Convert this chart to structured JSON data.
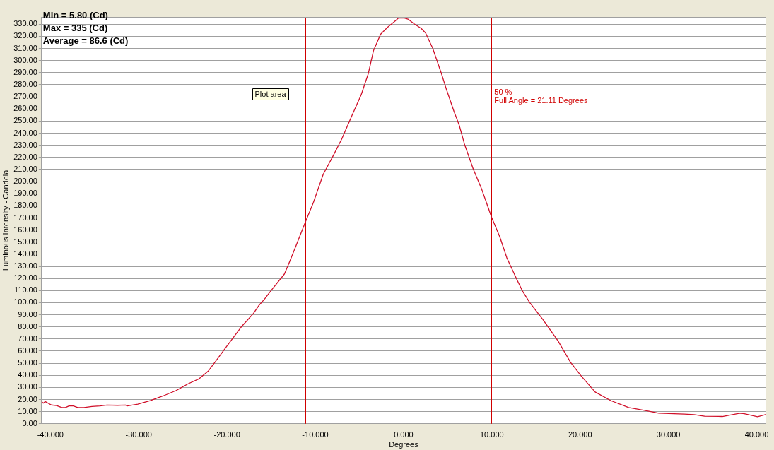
{
  "chart_data": {
    "type": "line",
    "xlabel": "Degrees",
    "ylabel": "Luminous Intensity - Candela",
    "series": [
      {
        "color": "#d0102a",
        "x": [
          -41.0,
          -40.8,
          -40.6,
          -39.9,
          -39.3,
          -38.7,
          -38.3,
          -37.9,
          -37.4,
          -36.9,
          -36.2,
          -35.3,
          -34.4,
          -33.6,
          -32.4,
          -31.5,
          -31.3,
          -30.1,
          -28.7,
          -27.3,
          -25.8,
          -24.4,
          -23.2,
          -22.1,
          -21.3,
          -20.1,
          -18.4,
          -17.0,
          -16.4,
          -15.8,
          -14.9,
          -13.5,
          -12.9,
          -12.2,
          -11.15,
          -10.2,
          -9.1,
          -8.0,
          -7.0,
          -5.8,
          -4.8,
          -4.0,
          -3.4,
          -2.6,
          -1.8,
          -1.0,
          -0.6,
          0.1,
          0.5,
          1.2,
          2.0,
          2.5,
          3.3,
          4.3,
          4.8,
          5.7,
          6.3,
          6.9,
          7.9,
          8.8,
          9.5,
          9.96,
          10.9,
          11.7,
          12.8,
          13.5,
          14.3,
          15.8,
          17.5,
          18.9,
          20.1,
          21.7,
          23.5,
          25.5,
          27.5,
          28.9,
          31.8,
          32.9,
          34.1,
          36.1,
          38.1,
          38.6,
          40.1,
          41.0
        ],
        "values": [
          18.3,
          17.0,
          18.3,
          15.5,
          15.0,
          13.4,
          13.4,
          14.7,
          14.7,
          13.4,
          13.4,
          14.3,
          14.7,
          15.4,
          15.2,
          15.4,
          14.7,
          16.2,
          19.1,
          22.8,
          27.3,
          33.0,
          37.0,
          43.7,
          51.4,
          63.3,
          79.8,
          91.1,
          97.6,
          102.5,
          111,
          123.6,
          134,
          146.7,
          166,
          183,
          206,
          221,
          235.2,
          255.3,
          271.7,
          289,
          308.3,
          321.7,
          327.5,
          332.3,
          335,
          335,
          334.2,
          330.3,
          326.5,
          322.7,
          310.2,
          289,
          277.4,
          258.2,
          246.7,
          231,
          210.2,
          194.7,
          180.3,
          170.7,
          154.4,
          137,
          119.7,
          109.2,
          100,
          85.9,
          68.4,
          50.9,
          39.6,
          26.2,
          19.0,
          13.4,
          10.7,
          8.7,
          8.0,
          7.5,
          6.2,
          6.0,
          8.7,
          8.3,
          5.8,
          7.6
        ]
      }
    ],
    "xlim": [
      -41,
      41
    ],
    "xticks": [
      {
        "value": -40,
        "label": "-40.000"
      },
      {
        "value": -30,
        "label": "-30.000"
      },
      {
        "value": -20,
        "label": "-20.000"
      },
      {
        "value": -10,
        "label": "-10.000"
      },
      {
        "value": 0,
        "label": "0.000"
      },
      {
        "value": 10,
        "label": "10.000"
      },
      {
        "value": 20,
        "label": "20.000"
      },
      {
        "value": 30,
        "label": "30.000"
      },
      {
        "value": 40,
        "label": "40.000"
      }
    ],
    "ylim": [
      0,
      336
    ],
    "yticks": [
      {
        "value": 0,
        "label": "0.00"
      },
      {
        "value": 10,
        "label": "10.00"
      },
      {
        "value": 20,
        "label": "20.00"
      },
      {
        "value": 30,
        "label": "30.00"
      },
      {
        "value": 40,
        "label": "40.00"
      },
      {
        "value": 50,
        "label": "50.00"
      },
      {
        "value": 60,
        "label": "60.00"
      },
      {
        "value": 70,
        "label": "70.00"
      },
      {
        "value": 80,
        "label": "80.00"
      },
      {
        "value": 90,
        "label": "90.00"
      },
      {
        "value": 100,
        "label": "100.00"
      },
      {
        "value": 110,
        "label": "110.00"
      },
      {
        "value": 120,
        "label": "120.00"
      },
      {
        "value": 130,
        "label": "130.00"
      },
      {
        "value": 140,
        "label": "140.00"
      },
      {
        "value": 150,
        "label": "150.00"
      },
      {
        "value": 160,
        "label": "160.00"
      },
      {
        "value": 170,
        "label": "170.00"
      },
      {
        "value": 180,
        "label": "180.00"
      },
      {
        "value": 190,
        "label": "190.00"
      },
      {
        "value": 200,
        "label": "200.00"
      },
      {
        "value": 210,
        "label": "210.00"
      },
      {
        "value": 220,
        "label": "220.00"
      },
      {
        "value": 230,
        "label": "230.00"
      },
      {
        "value": 240,
        "label": "240.00"
      },
      {
        "value": 250,
        "label": "250.00"
      },
      {
        "value": 260,
        "label": "260.00"
      },
      {
        "value": 270,
        "label": "270.00"
      },
      {
        "value": 280,
        "label": "280.00"
      },
      {
        "value": 290,
        "label": "290.00"
      },
      {
        "value": 300,
        "label": "300.00"
      },
      {
        "value": 310,
        "label": "310.00"
      },
      {
        "value": 320,
        "label": "320.00"
      },
      {
        "value": 330,
        "label": "330.00"
      }
    ],
    "grid": "y",
    "marker": "none",
    "line_style": "solid",
    "ref_lines": [
      {
        "axis": "x",
        "value": 0,
        "color": "#a0a0a0"
      },
      {
        "axis": "x",
        "value": -11.15,
        "color": "#d00000"
      },
      {
        "axis": "x",
        "value": 9.96,
        "color": "#d00000"
      }
    ],
    "annotations": [
      "Min = 5.80 (Cd)",
      "Max = 335 (Cd)",
      "Average = 86.6 (Cd)",
      {
        "text": "50 %",
        "x": 9.96,
        "y": 273.8
      },
      {
        "text": "Full Angle = 21.11 Degrees",
        "x": 9.96,
        "y": 266.3
      },
      "Plot area"
    ]
  }
}
